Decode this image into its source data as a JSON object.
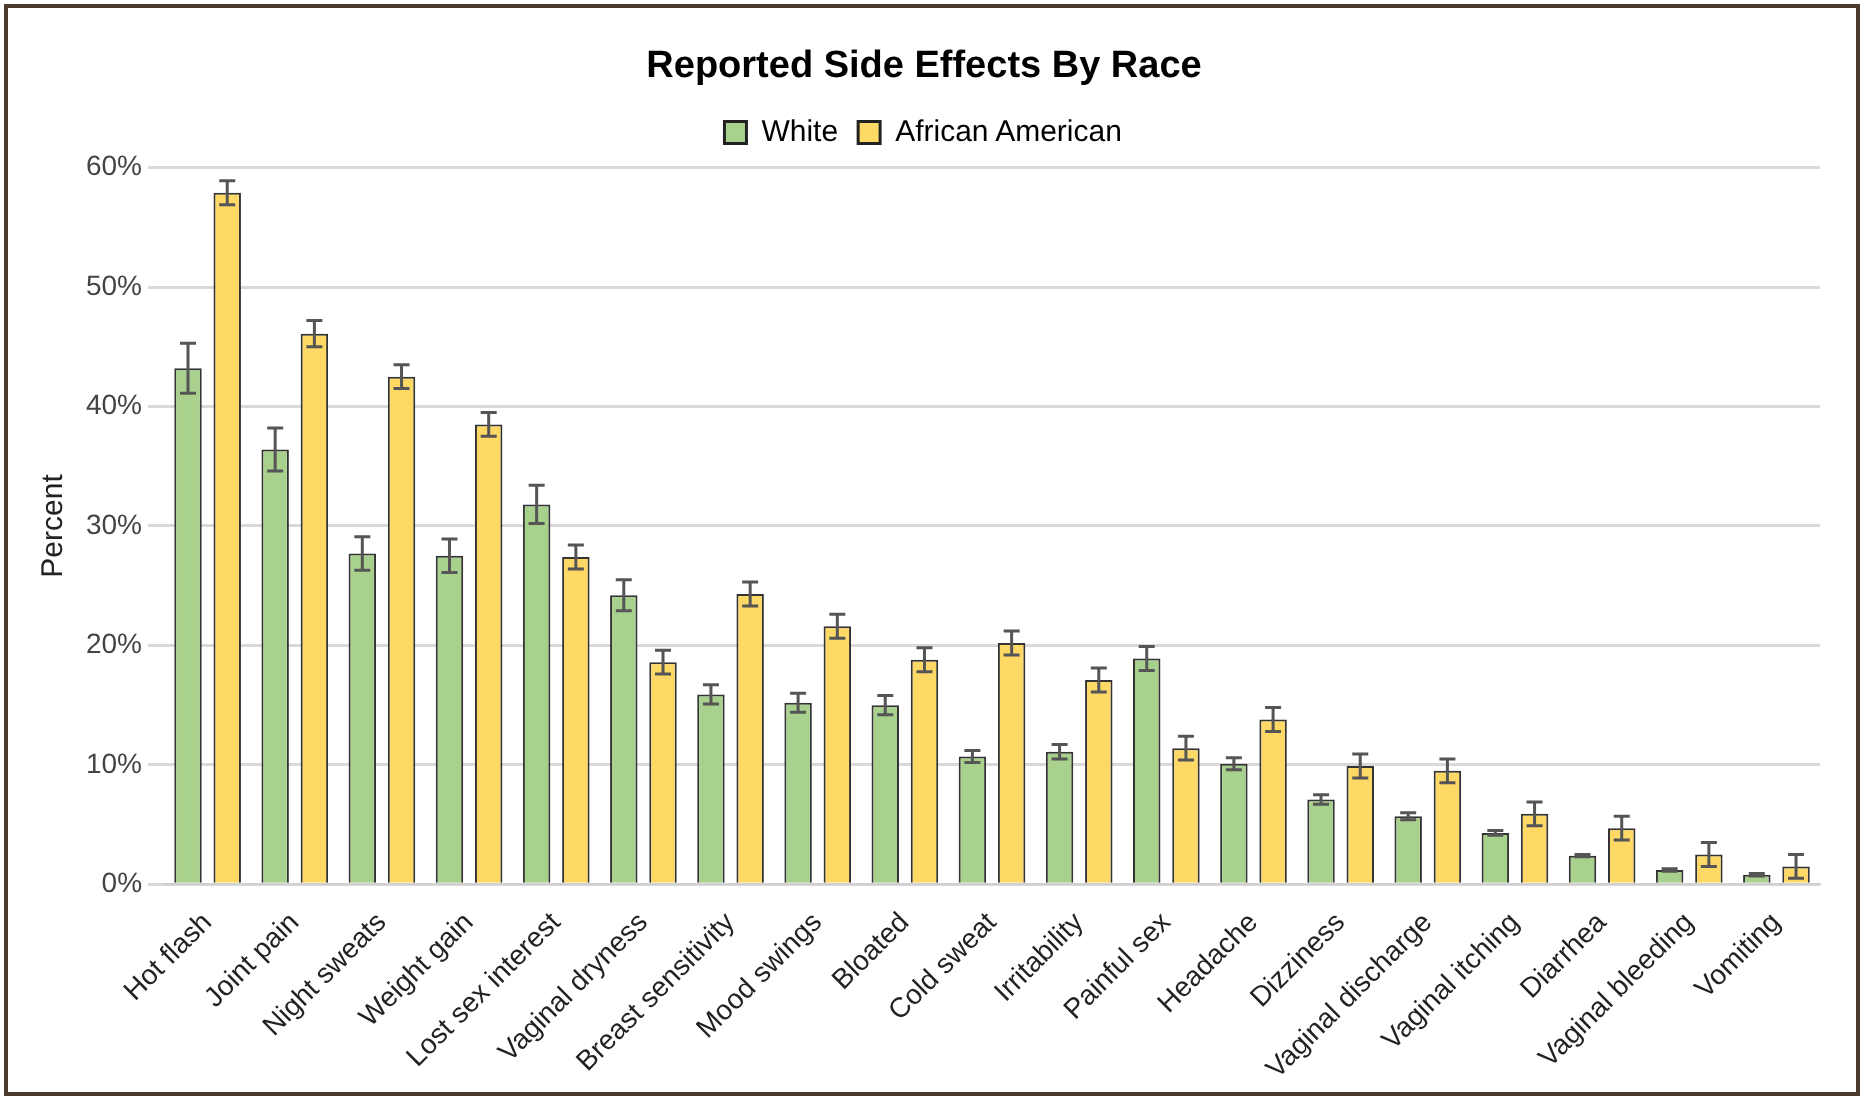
{
  "chart_data": {
    "type": "bar",
    "title": "Reported Side Effects By Race",
    "ylabel": "Percent",
    "categories": [
      "Hot flash",
      "Joint pain",
      "Night sweats",
      "Weight gain",
      "Lost sex interest",
      "Vaginal dryness",
      "Breast sensitivity",
      "Mood swings",
      "Bloated",
      "Cold sweat",
      "Irritability",
      "Painful sex",
      "Headache",
      "Dizziness",
      "Vaginal discharge",
      "Vaginal itching",
      "Diarrhea",
      "Vaginal bleeding",
      "Vomiting"
    ],
    "series": [
      {
        "name": "White",
        "color": "#a9d18e",
        "values": [
          43.2,
          36.4,
          27.7,
          27.5,
          31.8,
          24.2,
          15.9,
          15.2,
          15.0,
          10.7,
          11.1,
          18.9,
          10.1,
          7.1,
          5.7,
          4.3,
          2.4,
          1.2,
          0.8
        ],
        "errors": [
          2.1,
          1.8,
          1.4,
          1.4,
          1.6,
          1.3,
          0.8,
          0.8,
          0.8,
          0.5,
          0.6,
          1.0,
          0.5,
          0.4,
          0.3,
          0.2,
          0.1,
          0.1,
          0.1
        ]
      },
      {
        "name": "African American",
        "color": "#ffd966",
        "values": [
          57.9,
          46.1,
          42.5,
          38.5,
          27.4,
          18.6,
          24.3,
          21.6,
          18.8,
          20.2,
          17.1,
          11.4,
          13.8,
          9.9,
          9.5,
          5.9,
          4.7,
          2.5,
          1.5
        ],
        "errors": [
          1.0,
          1.1,
          1.0,
          1.0,
          1.0,
          1.0,
          1.0,
          1.0,
          1.0,
          1.0,
          1.0,
          1.0,
          1.0,
          1.0,
          1.0,
          1.0,
          1.0,
          1.0,
          1.0
        ]
      }
    ],
    "ylim": [
      0,
      60
    ],
    "yticks": [
      {
        "value": 0,
        "label": "0%"
      },
      {
        "value": 10,
        "label": "10%"
      },
      {
        "value": 20,
        "label": "20%"
      },
      {
        "value": 30,
        "label": "30%"
      },
      {
        "value": 40,
        "label": "40%"
      },
      {
        "value": 50,
        "label": "50%"
      },
      {
        "value": 60,
        "label": "60%"
      }
    ],
    "grid": "y",
    "legend": "top"
  }
}
